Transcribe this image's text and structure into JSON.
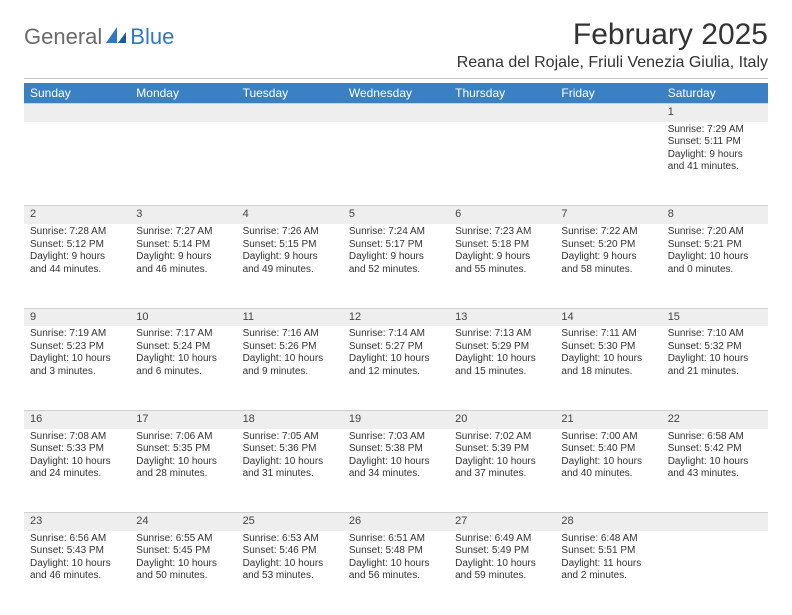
{
  "logo": {
    "text1": "General",
    "text2": "Blue"
  },
  "title": "February 2025",
  "location": "Reana del Rojale, Friuli Venezia Giulia, Italy",
  "colors": {
    "header_bg": "#3a81c4",
    "header_text": "#ffffff",
    "daynum_bg": "#eeeeee",
    "text": "#333333",
    "logo_gray": "#6b6b6b",
    "logo_blue": "#2f78c3",
    "rule": "#c8c8c8"
  },
  "typography": {
    "title_fontsize": 30,
    "location_fontsize": 16,
    "dayheader_fontsize": 12,
    "daynum_fontsize": 11,
    "body_fontsize": 10
  },
  "day_headers": [
    "Sunday",
    "Monday",
    "Tuesday",
    "Wednesday",
    "Thursday",
    "Friday",
    "Saturday"
  ],
  "weeks": [
    [
      null,
      null,
      null,
      null,
      null,
      null,
      {
        "n": "1",
        "sunrise": "7:29 AM",
        "sunset": "5:11 PM",
        "daylight": "9 hours and 41 minutes."
      }
    ],
    [
      {
        "n": "2",
        "sunrise": "7:28 AM",
        "sunset": "5:12 PM",
        "daylight": "9 hours and 44 minutes."
      },
      {
        "n": "3",
        "sunrise": "7:27 AM",
        "sunset": "5:14 PM",
        "daylight": "9 hours and 46 minutes."
      },
      {
        "n": "4",
        "sunrise": "7:26 AM",
        "sunset": "5:15 PM",
        "daylight": "9 hours and 49 minutes."
      },
      {
        "n": "5",
        "sunrise": "7:24 AM",
        "sunset": "5:17 PM",
        "daylight": "9 hours and 52 minutes."
      },
      {
        "n": "6",
        "sunrise": "7:23 AM",
        "sunset": "5:18 PM",
        "daylight": "9 hours and 55 minutes."
      },
      {
        "n": "7",
        "sunrise": "7:22 AM",
        "sunset": "5:20 PM",
        "daylight": "9 hours and 58 minutes."
      },
      {
        "n": "8",
        "sunrise": "7:20 AM",
        "sunset": "5:21 PM",
        "daylight": "10 hours and 0 minutes."
      }
    ],
    [
      {
        "n": "9",
        "sunrise": "7:19 AM",
        "sunset": "5:23 PM",
        "daylight": "10 hours and 3 minutes."
      },
      {
        "n": "10",
        "sunrise": "7:17 AM",
        "sunset": "5:24 PM",
        "daylight": "10 hours and 6 minutes."
      },
      {
        "n": "11",
        "sunrise": "7:16 AM",
        "sunset": "5:26 PM",
        "daylight": "10 hours and 9 minutes."
      },
      {
        "n": "12",
        "sunrise": "7:14 AM",
        "sunset": "5:27 PM",
        "daylight": "10 hours and 12 minutes."
      },
      {
        "n": "13",
        "sunrise": "7:13 AM",
        "sunset": "5:29 PM",
        "daylight": "10 hours and 15 minutes."
      },
      {
        "n": "14",
        "sunrise": "7:11 AM",
        "sunset": "5:30 PM",
        "daylight": "10 hours and 18 minutes."
      },
      {
        "n": "15",
        "sunrise": "7:10 AM",
        "sunset": "5:32 PM",
        "daylight": "10 hours and 21 minutes."
      }
    ],
    [
      {
        "n": "16",
        "sunrise": "7:08 AM",
        "sunset": "5:33 PM",
        "daylight": "10 hours and 24 minutes."
      },
      {
        "n": "17",
        "sunrise": "7:06 AM",
        "sunset": "5:35 PM",
        "daylight": "10 hours and 28 minutes."
      },
      {
        "n": "18",
        "sunrise": "7:05 AM",
        "sunset": "5:36 PM",
        "daylight": "10 hours and 31 minutes."
      },
      {
        "n": "19",
        "sunrise": "7:03 AM",
        "sunset": "5:38 PM",
        "daylight": "10 hours and 34 minutes."
      },
      {
        "n": "20",
        "sunrise": "7:02 AM",
        "sunset": "5:39 PM",
        "daylight": "10 hours and 37 minutes."
      },
      {
        "n": "21",
        "sunrise": "7:00 AM",
        "sunset": "5:40 PM",
        "daylight": "10 hours and 40 minutes."
      },
      {
        "n": "22",
        "sunrise": "6:58 AM",
        "sunset": "5:42 PM",
        "daylight": "10 hours and 43 minutes."
      }
    ],
    [
      {
        "n": "23",
        "sunrise": "6:56 AM",
        "sunset": "5:43 PM",
        "daylight": "10 hours and 46 minutes."
      },
      {
        "n": "24",
        "sunrise": "6:55 AM",
        "sunset": "5:45 PM",
        "daylight": "10 hours and 50 minutes."
      },
      {
        "n": "25",
        "sunrise": "6:53 AM",
        "sunset": "5:46 PM",
        "daylight": "10 hours and 53 minutes."
      },
      {
        "n": "26",
        "sunrise": "6:51 AM",
        "sunset": "5:48 PM",
        "daylight": "10 hours and 56 minutes."
      },
      {
        "n": "27",
        "sunrise": "6:49 AM",
        "sunset": "5:49 PM",
        "daylight": "10 hours and 59 minutes."
      },
      {
        "n": "28",
        "sunrise": "6:48 AM",
        "sunset": "5:51 PM",
        "daylight": "11 hours and 2 minutes."
      },
      null
    ]
  ],
  "labels": {
    "sunrise": "Sunrise:",
    "sunset": "Sunset:",
    "daylight": "Daylight:"
  }
}
